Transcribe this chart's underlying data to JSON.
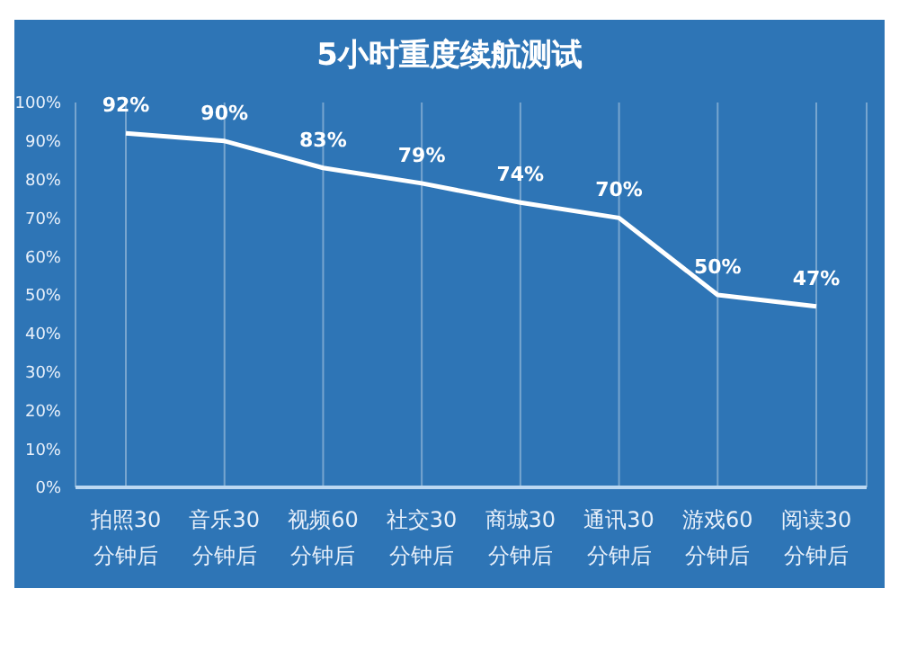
{
  "chart_data": {
    "type": "line",
    "title": "5小时重度续航测试",
    "categories": [
      "拍照30\n分钟后",
      "音乐30\n分钟后",
      "视频60\n分钟后",
      "社交30\n分钟后",
      "商城30\n分钟后",
      "通讯30\n分钟后",
      "游戏60\n分钟后",
      "阅读30\n分钟后"
    ],
    "values": [
      92,
      90,
      83,
      79,
      74,
      70,
      50,
      47
    ],
    "value_labels": [
      "92%",
      "90%",
      "83%",
      "79%",
      "74%",
      "70%",
      "50%",
      "47%"
    ],
    "color": "#ffffff",
    "marker": "none",
    "line_style": "solid",
    "grid": "x",
    "ylim": [
      0,
      100
    ],
    "yticks": [
      {
        "value": 0,
        "label": "0%"
      },
      {
        "value": 10,
        "label": "10%"
      },
      {
        "value": 20,
        "label": "20%"
      },
      {
        "value": 30,
        "label": "30%"
      },
      {
        "value": 40,
        "label": "40%"
      },
      {
        "value": 50,
        "label": "50%"
      },
      {
        "value": 60,
        "label": "60%"
      },
      {
        "value": 70,
        "label": "70%"
      },
      {
        "value": 80,
        "label": "80%"
      },
      {
        "value": 90,
        "label": "90%"
      },
      {
        "value": 100,
        "label": "100%"
      }
    ]
  }
}
